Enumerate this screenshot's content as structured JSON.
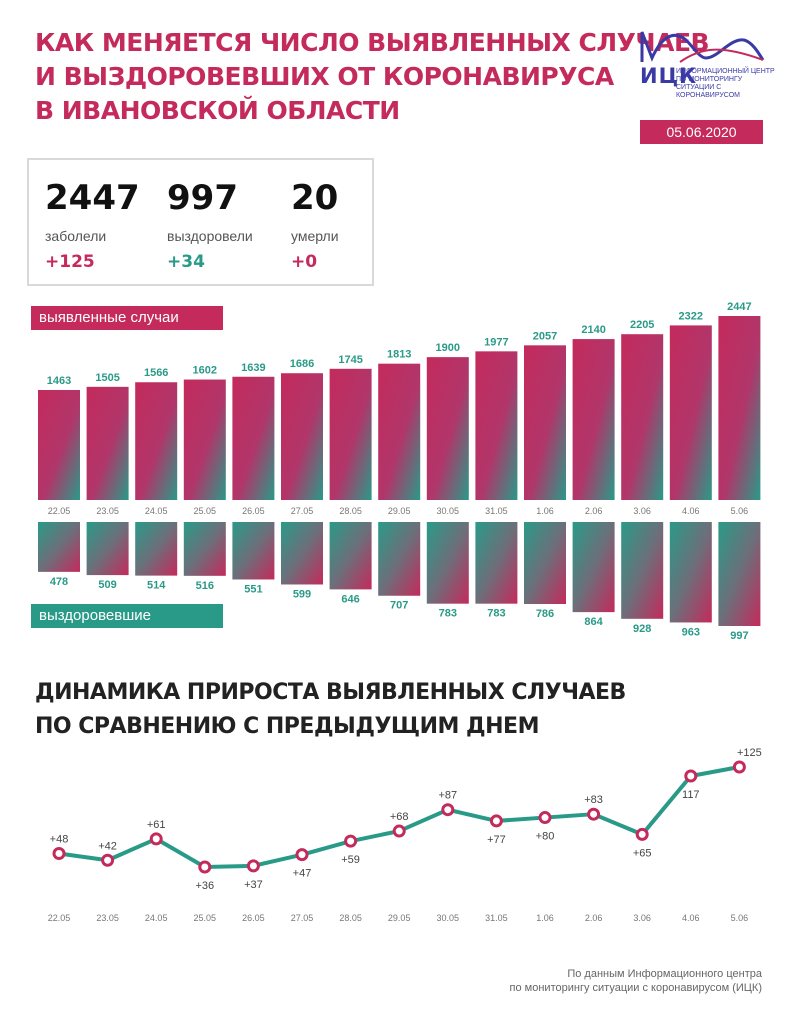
{
  "header": {
    "title_lines": [
      "КАК МЕНЯЕТСЯ ЧИСЛО ВЫЯВЛЕННЫХ СЛУЧАЕВ",
      "И ВЫЗДОРОВЕВШИХ ОТ КОРОНАВИРУСА",
      "В ИВАНОВСКОЙ ОБЛАСТИ"
    ],
    "logo_name": "ИЦК",
    "logo_sub": "ИНФОРМАЦИОННЫЙ ЦЕНТР ПО МОНИТОРИНГУ СИТУАЦИИ С КОРОНАВИРУСОМ",
    "date": "05.06.2020"
  },
  "stats": {
    "cases": {
      "value": "2447",
      "label": "заболели",
      "delta": "+125"
    },
    "recovered": {
      "value": "997",
      "label": "выздоровели",
      "delta": "+34"
    },
    "deaths": {
      "value": "20",
      "label": "умерли",
      "delta": "+0"
    }
  },
  "colors": {
    "red": "#c42a5c",
    "green": "#2a9a88"
  },
  "chart_data": [
    {
      "type": "bar",
      "categories": [
        "22.05",
        "23.05",
        "24.05",
        "25.05",
        "26.05",
        "27.05",
        "28.05",
        "29.05",
        "30.05",
        "31.05",
        "1.06",
        "2.06",
        "3.06",
        "4.06",
        "5.06"
      ],
      "series": [
        {
          "name": "выявленные случаи",
          "values": [
            1463,
            1505,
            1566,
            1602,
            1639,
            1686,
            1745,
            1813,
            1900,
            1977,
            2057,
            2140,
            2205,
            2322,
            2447
          ]
        },
        {
          "name": "выздоровевшие",
          "values": [
            478,
            509,
            514,
            516,
            551,
            599,
            646,
            707,
            783,
            783,
            786,
            864,
            928,
            963,
            997
          ]
        }
      ]
    },
    {
      "type": "line",
      "title": "ДИНАМИКА ПРИРОСТА ВЫЯВЛЕННЫХ СЛУЧАЕВ ПО СРАВНЕНИЮ С ПРЕДЫДУЩИМ ДНЕМ",
      "title_lines": [
        "ДИНАМИКА ПРИРОСТА ВЫЯВЛЕННЫХ СЛУЧАЕВ",
        "ПО СРАВНЕНИЮ С ПРЕДЫДУЩИМ ДНЕМ"
      ],
      "categories": [
        "22.05",
        "23.05",
        "24.05",
        "25.05",
        "26.05",
        "27.05",
        "28.05",
        "29.05",
        "30.05",
        "31.05",
        "1.06",
        "2.06",
        "3.06",
        "4.06",
        "5.06"
      ],
      "values": [
        48,
        42,
        61,
        36,
        37,
        47,
        59,
        68,
        87,
        77,
        80,
        83,
        65,
        117,
        125
      ],
      "labels": [
        "+48",
        "+42",
        "+61",
        "+36",
        "+37",
        "+47",
        "+59",
        "+68",
        "+87",
        "+77",
        "+80",
        "+83",
        "+65",
        "117",
        "+125"
      ]
    }
  ],
  "source_lines": [
    "По данным Информационного центра",
    "по мониторингу ситуации с коронавирусом (ИЦК)"
  ]
}
